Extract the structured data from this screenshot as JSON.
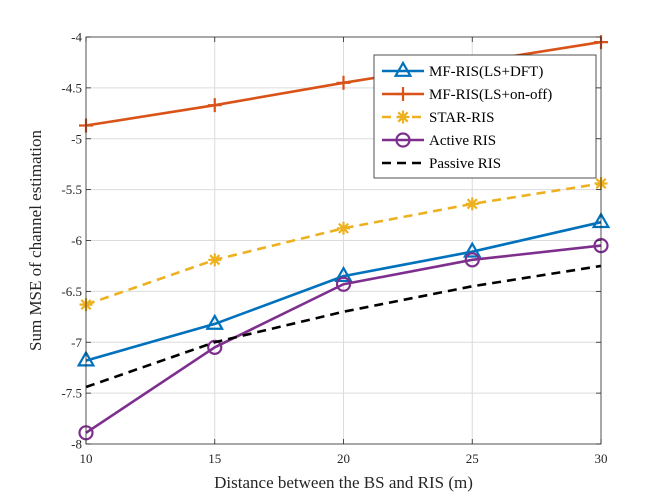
{
  "chart_data": {
    "type": "line",
    "title": "",
    "xlabel": "Distance between the BS and RIS (m)",
    "ylabel": "Sum MSE of channel estimation",
    "x": [
      10,
      15,
      20,
      25,
      30
    ],
    "xlim": [
      10,
      30
    ],
    "ylim": [
      -8,
      -4
    ],
    "xticks": [
      10,
      15,
      20,
      25,
      30
    ],
    "yticks": [
      -8,
      -7.5,
      -7,
      -6.5,
      -6,
      -5.5,
      -5,
      -4.5,
      -4
    ],
    "xtick_labels": [
      "10",
      "15",
      "20",
      "25",
      "30"
    ],
    "ytick_labels": [
      "-8",
      "-7.5",
      "-7",
      "-6.5",
      "-6",
      "-5.5",
      "-5",
      "-4.5",
      "-4"
    ],
    "grid": true,
    "legend_position": "top-right",
    "series": [
      {
        "name": "MF-RIS(LS+DFT)",
        "color": "#0072BD",
        "dash": "solid",
        "marker": "triangle",
        "values": [
          -7.18,
          -6.82,
          -6.35,
          -6.11,
          -5.82
        ]
      },
      {
        "name": "MF-RIS(LS+on-off)",
        "color": "#D95319",
        "dash": "solid",
        "marker": "plus",
        "values": [
          -4.87,
          -4.67,
          -4.45,
          -4.25,
          -4.05
        ]
      },
      {
        "name": "STAR-RIS",
        "color": "#EDB120",
        "dash": "dashed",
        "marker": "asterisk",
        "values": [
          -6.63,
          -6.19,
          -5.88,
          -5.64,
          -5.44
        ]
      },
      {
        "name": "Active RIS",
        "color": "#7E2F8E",
        "dash": "solid",
        "marker": "circle",
        "values": [
          -7.89,
          -7.05,
          -6.43,
          -6.19,
          -6.05
        ]
      },
      {
        "name": "Passive RIS",
        "color": "#000000",
        "dash": "dashed",
        "marker": "none",
        "values": [
          -7.44,
          -7.0,
          -6.7,
          -6.45,
          -6.25
        ]
      }
    ]
  }
}
